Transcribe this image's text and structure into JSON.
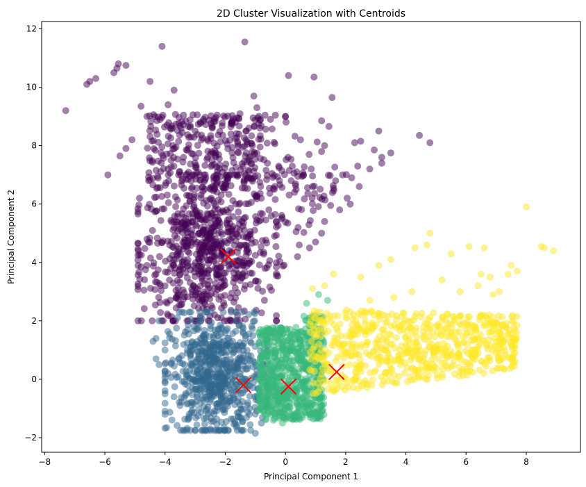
{
  "chart_data": {
    "type": "scatter",
    "title": "2D Cluster Visualization with Centroids",
    "xlabel": "Principal Component 1",
    "ylabel": "Principal Component 2",
    "xlim": [
      -8.1,
      9.8
    ],
    "ylim": [
      -2.5,
      12.25
    ],
    "xticks": [
      -8,
      -6,
      -4,
      -2,
      0,
      2,
      4,
      6,
      8
    ],
    "yticks": [
      -2,
      0,
      2,
      4,
      6,
      8,
      10,
      12
    ],
    "grid": false,
    "legend": "none",
    "marker_alpha": 0.5,
    "series": [
      {
        "color": "#440154",
        "region": {
          "x": [
            -4.6,
            -0.6
          ],
          "y": [
            2.0,
            6.7
          ]
        },
        "points": [
          [
            -7.3,
            9.2
          ],
          [
            -6.6,
            10.1
          ],
          [
            -6.5,
            10.2
          ],
          [
            -6.3,
            10.3
          ],
          [
            -5.7,
            10.5
          ],
          [
            -5.6,
            10.65
          ],
          [
            -5.55,
            10.8
          ],
          [
            -5.3,
            10.75
          ],
          [
            -5.5,
            7.65
          ],
          [
            -5.3,
            7.9
          ],
          [
            -5.9,
            7.0
          ],
          [
            -5.1,
            8.2
          ],
          [
            -4.8,
            9.35
          ],
          [
            -4.6,
            9.0
          ],
          [
            -4.5,
            10.2
          ],
          [
            -4.1,
            11.4
          ],
          [
            -3.7,
            9.9
          ],
          [
            -3.9,
            9.4
          ],
          [
            -1.35,
            11.55
          ],
          [
            -1.05,
            9.7
          ],
          [
            -0.95,
            9.3
          ],
          [
            0.1,
            10.4
          ],
          [
            0.95,
            10.35
          ],
          [
            1.55,
            9.65
          ],
          [
            1.2,
            8.85
          ],
          [
            0.0,
            9.0
          ],
          [
            -0.5,
            8.9
          ],
          [
            -0.85,
            8.6
          ],
          [
            0.5,
            8.2
          ],
          [
            1.3,
            8.0
          ],
          [
            1.2,
            7.8
          ],
          [
            2.3,
            8.1
          ],
          [
            2.5,
            8.15
          ],
          [
            3.1,
            8.5
          ],
          [
            2.95,
            7.85
          ],
          [
            3.2,
            7.6
          ],
          [
            3.5,
            7.75
          ],
          [
            3.2,
            7.4
          ],
          [
            2.8,
            7.2
          ],
          [
            2.4,
            7.3
          ],
          [
            4.45,
            8.35
          ],
          [
            4.8,
            8.1
          ],
          [
            1.9,
            7.0
          ],
          [
            2.2,
            6.9
          ],
          [
            2.45,
            6.6
          ],
          [
            2.05,
            6.2
          ],
          [
            2.15,
            6.0
          ],
          [
            1.8,
            5.8
          ],
          [
            1.5,
            5.95
          ],
          [
            1.3,
            5.4
          ],
          [
            1.2,
            5.0
          ],
          [
            1.0,
            4.7
          ],
          [
            0.8,
            4.5
          ],
          [
            0.4,
            4.2
          ],
          [
            -4.85,
            6.2
          ],
          [
            -4.6,
            4.8
          ],
          [
            -4.55,
            4.7
          ],
          [
            -4.6,
            3.9
          ],
          [
            -4.65,
            3.75
          ],
          [
            -4.7,
            3.05
          ],
          [
            -4.3,
            3.6
          ],
          [
            -4.0,
            3.2
          ],
          [
            -1.1,
            8.0
          ],
          [
            -0.6,
            7.4
          ],
          [
            0.6,
            7.0
          ],
          [
            0.9,
            6.6
          ],
          [
            0.3,
            6.4
          ],
          [
            -0.2,
            6.8
          ]
        ]
      },
      {
        "color": "#31688e",
        "region": {
          "x": [
            -3.7,
            -0.9
          ],
          "y": [
            -1.75,
            2.0
          ]
        },
        "points": [
          [
            -4.2,
            2.0
          ],
          [
            -4.3,
            1.4
          ],
          [
            -4.4,
            1.3
          ],
          [
            -4.0,
            1.0
          ],
          [
            -4.3,
            0.7
          ],
          [
            -4.2,
            0.5
          ],
          [
            -3.9,
            0.2
          ],
          [
            -3.7,
            -0.6
          ],
          [
            -3.5,
            -0.9
          ],
          [
            -3.2,
            -1.2
          ],
          [
            -2.5,
            -1.7
          ],
          [
            -1.6,
            -1.75
          ],
          [
            -1.0,
            -1.85
          ],
          [
            -0.8,
            -1.5
          ]
        ]
      },
      {
        "color": "#35b779",
        "region": {
          "x": [
            -1.0,
            1.3
          ],
          "y": [
            -1.5,
            2.8
          ]
        },
        "points": [
          [
            -0.4,
            -1.4
          ],
          [
            -0.1,
            -1.5
          ],
          [
            0.3,
            -1.35
          ],
          [
            0.8,
            -1.2
          ],
          [
            1.2,
            -1.1
          ],
          [
            1.4,
            2.7
          ],
          [
            1.1,
            2.9
          ],
          [
            0.7,
            2.6
          ]
        ]
      },
      {
        "color": "#fde725",
        "region": {
          "x": [
            0.7,
            7.6
          ],
          "y": [
            -0.6,
            3.3
          ]
        },
        "points": [
          [
            8.0,
            5.9
          ],
          [
            8.9,
            4.4
          ],
          [
            8.5,
            4.55
          ],
          [
            8.6,
            4.5
          ],
          [
            7.7,
            3.7
          ],
          [
            7.5,
            3.9
          ],
          [
            7.4,
            3.6
          ],
          [
            6.6,
            4.5
          ],
          [
            6.1,
            4.55
          ],
          [
            5.5,
            4.3
          ],
          [
            4.8,
            5.0
          ],
          [
            4.7,
            4.6
          ],
          [
            4.3,
            4.5
          ],
          [
            3.5,
            4.1
          ],
          [
            3.1,
            3.9
          ],
          [
            2.5,
            3.5
          ],
          [
            1.6,
            3.6
          ],
          [
            1.3,
            3.2
          ],
          [
            0.9,
            3.1
          ],
          [
            6.4,
            3.2
          ],
          [
            6.8,
            3.5
          ],
          [
            5.2,
            3.4
          ],
          [
            5.8,
            3.0
          ],
          [
            4.2,
            3.0
          ],
          [
            3.6,
            2.8
          ],
          [
            2.8,
            2.7
          ],
          [
            6.9,
            2.9
          ],
          [
            7.1,
            3.0
          ],
          [
            6.5,
            3.6
          ]
        ]
      }
    ],
    "centroids": {
      "color": "#ff0000",
      "marker": "x",
      "points": [
        [
          -1.9,
          4.2
        ],
        [
          -1.4,
          -0.2
        ],
        [
          0.1,
          -0.25
        ],
        [
          1.7,
          0.25
        ]
      ]
    }
  }
}
